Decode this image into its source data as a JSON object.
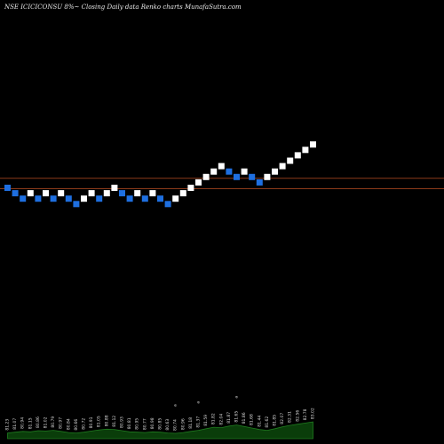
{
  "header": {
    "title": "NSE ICICICONSU 8%~  Closing Daily data  Renko  charts MunafaSutra.com"
  },
  "chart_data": {
    "type": "renko",
    "title": "NSE ICICICONSU 8%~  Closing Daily data  Renko  charts MunafaSutra.com",
    "colors": {
      "up": "#ffffff",
      "down": "#1e6fe0",
      "reference_line": "#8b3a1a",
      "volume_fill": "#0a3d0a",
      "volume_line": "#1f7a1f"
    },
    "grid": false,
    "reference_levels": [
      2,
      0
    ],
    "bricks": [
      {
        "i": 0,
        "level": 0,
        "dir": "down"
      },
      {
        "i": 1,
        "level": -1,
        "dir": "down"
      },
      {
        "i": 2,
        "level": -2,
        "dir": "down"
      },
      {
        "i": 3,
        "level": -1,
        "dir": "up"
      },
      {
        "i": 4,
        "level": -2,
        "dir": "down"
      },
      {
        "i": 5,
        "level": -1,
        "dir": "up"
      },
      {
        "i": 6,
        "level": -2,
        "dir": "down"
      },
      {
        "i": 7,
        "level": -1,
        "dir": "up"
      },
      {
        "i": 8,
        "level": -2,
        "dir": "down"
      },
      {
        "i": 9,
        "level": -3,
        "dir": "down"
      },
      {
        "i": 10,
        "level": -2,
        "dir": "up"
      },
      {
        "i": 11,
        "level": -1,
        "dir": "up"
      },
      {
        "i": 12,
        "level": -2,
        "dir": "down"
      },
      {
        "i": 13,
        "level": -1,
        "dir": "up"
      },
      {
        "i": 14,
        "level": 0,
        "dir": "up"
      },
      {
        "i": 15,
        "level": -1,
        "dir": "down"
      },
      {
        "i": 16,
        "level": -2,
        "dir": "down"
      },
      {
        "i": 17,
        "level": -1,
        "dir": "up"
      },
      {
        "i": 18,
        "level": -2,
        "dir": "down"
      },
      {
        "i": 19,
        "level": -1,
        "dir": "up"
      },
      {
        "i": 20,
        "level": -2,
        "dir": "down"
      },
      {
        "i": 21,
        "level": -3,
        "dir": "down"
      },
      {
        "i": 22,
        "level": -2,
        "dir": "up"
      },
      {
        "i": 23,
        "level": -1,
        "dir": "up"
      },
      {
        "i": 24,
        "level": 0,
        "dir": "up"
      },
      {
        "i": 25,
        "level": 1,
        "dir": "up"
      },
      {
        "i": 26,
        "level": 2,
        "dir": "up"
      },
      {
        "i": 27,
        "level": 3,
        "dir": "up"
      },
      {
        "i": 28,
        "level": 4,
        "dir": "up"
      },
      {
        "i": 29,
        "level": 3,
        "dir": "down"
      },
      {
        "i": 30,
        "level": 2,
        "dir": "down"
      },
      {
        "i": 31,
        "level": 3,
        "dir": "up"
      },
      {
        "i": 32,
        "level": 2,
        "dir": "down"
      },
      {
        "i": 33,
        "level": 1,
        "dir": "down"
      },
      {
        "i": 34,
        "level": 2,
        "dir": "up"
      },
      {
        "i": 35,
        "level": 3,
        "dir": "up"
      },
      {
        "i": 36,
        "level": 4,
        "dir": "up"
      },
      {
        "i": 37,
        "level": 5,
        "dir": "up"
      },
      {
        "i": 38,
        "level": 6,
        "dir": "up"
      },
      {
        "i": 39,
        "level": 7,
        "dir": "up"
      },
      {
        "i": 40,
        "level": 8,
        "dir": "up"
      }
    ],
    "volume": {
      "values": [
        0.3,
        0.34,
        0.38,
        0.36,
        0.42,
        0.4,
        0.44,
        0.38,
        0.32,
        0.3,
        0.34,
        0.4,
        0.46,
        0.5,
        0.48,
        0.42,
        0.36,
        0.34,
        0.32,
        0.36,
        0.34,
        0.3,
        0.28,
        0.32,
        0.38,
        0.44,
        0.52,
        0.6,
        0.58,
        0.66,
        0.72,
        0.64,
        0.56,
        0.48,
        0.44,
        0.52,
        0.62,
        0.7,
        0.76,
        0.82,
        0.88
      ],
      "labels": [
        "81.23",
        "81.07",
        "80.94",
        "81.15",
        "80.86",
        "81.02",
        "80.79",
        "80.97",
        "80.84",
        "80.66",
        "80.72",
        "80.91",
        "81.05",
        "80.88",
        "81.12",
        "80.93",
        "80.81",
        "80.95",
        "80.77",
        "80.98",
        "80.85",
        "80.63",
        "80.74",
        "80.96",
        "81.18",
        "81.37",
        "81.59",
        "81.82",
        "82.04",
        "81.87",
        "81.65",
        "81.86",
        "81.68",
        "81.44",
        "81.62",
        "81.85",
        "82.07",
        "82.31",
        "82.56",
        "82.78",
        "83.02"
      ],
      "markers": [
        "a",
        "a",
        "a"
      ]
    }
  }
}
